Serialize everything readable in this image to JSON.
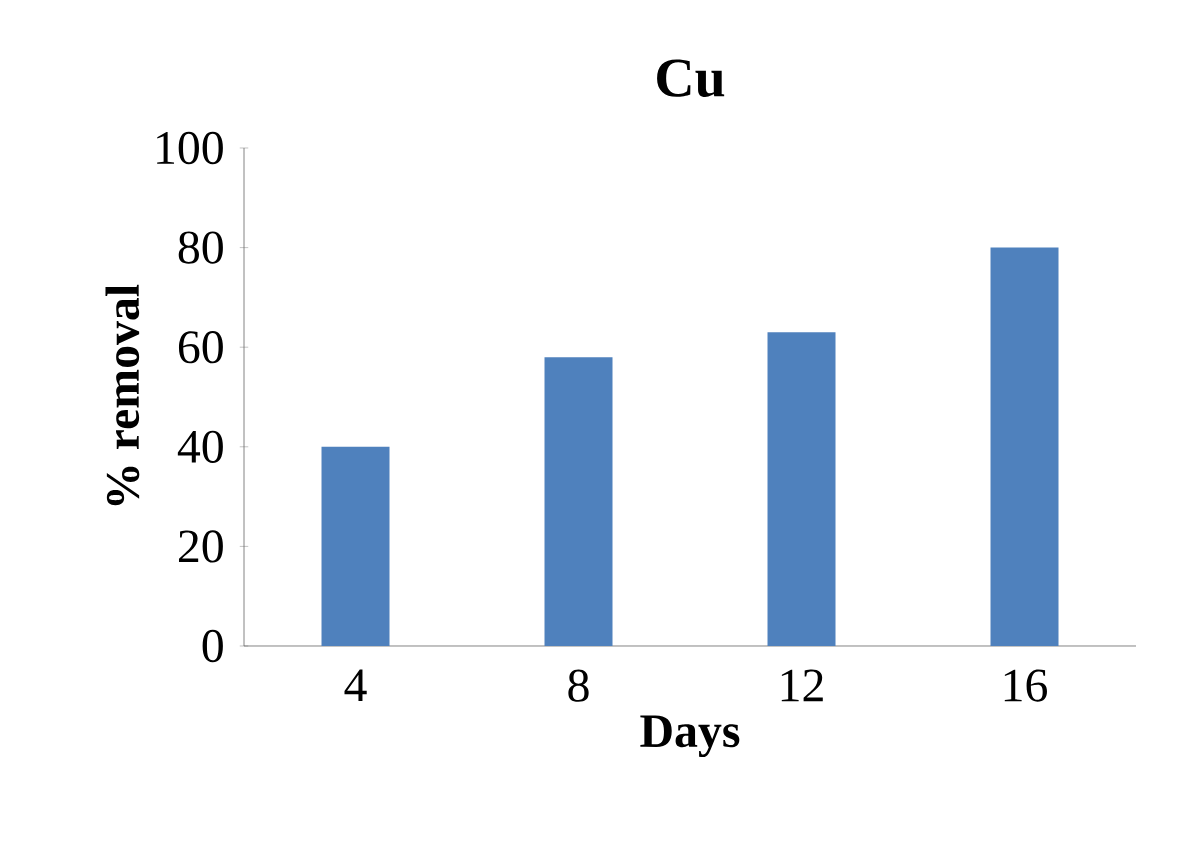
{
  "chart_data": {
    "type": "bar",
    "title": "Cu",
    "xlabel": "Days",
    "ylabel": "% removal",
    "categories": [
      "4",
      "8",
      "12",
      "16"
    ],
    "values": [
      40,
      58,
      63,
      80
    ],
    "color": "#4f81bd",
    "ylim": [
      0,
      100
    ],
    "yticks": [
      0,
      20,
      40,
      60,
      80,
      100
    ],
    "grid": false
  }
}
